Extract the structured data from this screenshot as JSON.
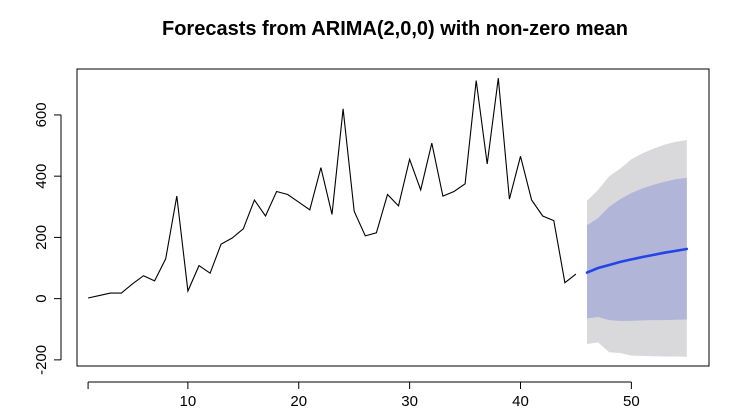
{
  "chart_data": {
    "type": "line",
    "title": "Forecasts from ARIMA(2,0,0) with non-zero mean",
    "xlabel": "",
    "ylabel": "",
    "xlim": [
      0,
      57
    ],
    "ylim": [
      -220,
      750
    ],
    "x_ticks": [
      10,
      20,
      30,
      40,
      50
    ],
    "y_ticks": [
      -200,
      0,
      200,
      400,
      600
    ],
    "grid": false,
    "colors": {
      "observed": "#000000",
      "forecast_mean": "#2244e8",
      "interval_80": "#b1b5d8",
      "interval_95": "#d9d9dc"
    },
    "observed": {
      "x": [
        1,
        2,
        3,
        4,
        5,
        6,
        7,
        8,
        9,
        10,
        11,
        12,
        13,
        14,
        15,
        16,
        17,
        18,
        19,
        20,
        21,
        22,
        23,
        24,
        25,
        26,
        27,
        28,
        29,
        30,
        31,
        32,
        33,
        34,
        35,
        36,
        37,
        38,
        39,
        40,
        41,
        42,
        43,
        44,
        45
      ],
      "y": [
        2,
        10,
        18,
        18,
        48,
        75,
        58,
        130,
        335,
        25,
        108,
        83,
        178,
        198,
        228,
        322,
        270,
        350,
        340,
        315,
        290,
        428,
        275,
        620,
        285,
        205,
        215,
        340,
        303,
        455,
        355,
        508,
        335,
        350,
        375,
        712,
        440,
        720,
        325,
        465,
        322,
        270,
        255,
        52,
        80
      ]
    },
    "forecast": {
      "x": [
        46,
        47,
        48,
        49,
        50,
        51,
        52,
        53,
        54,
        55
      ],
      "mean": [
        85,
        100,
        110,
        120,
        128,
        136,
        143,
        150,
        156,
        162
      ],
      "lo80": [
        -65,
        -60,
        -70,
        -73,
        -72,
        -71,
        -70,
        -70,
        -69,
        -68
      ],
      "hi80": [
        240,
        263,
        300,
        325,
        345,
        360,
        372,
        382,
        390,
        395
      ],
      "lo95": [
        -148,
        -143,
        -175,
        -178,
        -186,
        -187,
        -188,
        -189,
        -189,
        -190
      ],
      "hi95": [
        320,
        355,
        400,
        425,
        455,
        475,
        490,
        503,
        512,
        518
      ]
    }
  }
}
